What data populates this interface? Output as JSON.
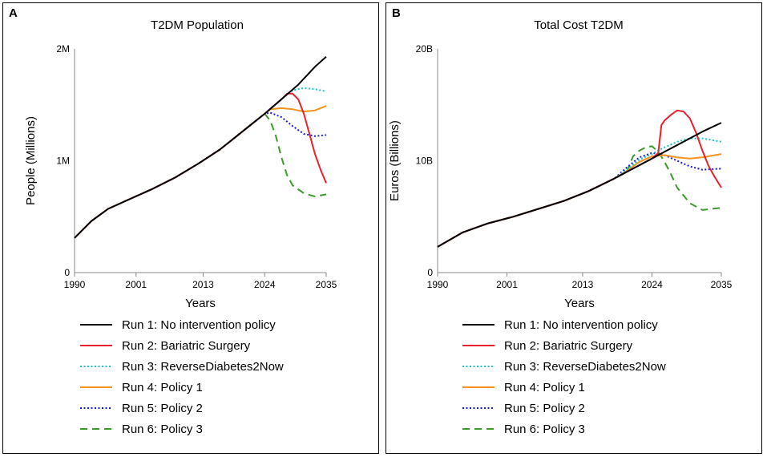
{
  "panels": [
    {
      "letter": "A",
      "chart_data": {
        "type": "line",
        "title": "T2DM Population",
        "xlabel": "Years",
        "ylabel": "People (Millions)",
        "xlim": [
          1990,
          2035
        ],
        "ylim": [
          0,
          2
        ],
        "xticks": [
          1990,
          2001,
          2013,
          2024,
          2035
        ],
        "xtick_labels": [
          "1990",
          "2001",
          "2013",
          "2024",
          "2035"
        ],
        "yticks": [
          0,
          1,
          2
        ],
        "ytick_labels": [
          "0",
          "1M",
          "2M"
        ],
        "grid": false,
        "legend_position": "bottom",
        "series": [
          {
            "name": "Run 1: No intervention policy",
            "color": "#000000",
            "dash": "solid",
            "x": [
              1990,
              1993,
              1996,
              2000,
              2004,
              2008,
              2012,
              2016,
              2020,
              2024,
              2027,
              2030,
              2033,
              2035
            ],
            "y": [
              0.31,
              0.46,
              0.57,
              0.66,
              0.75,
              0.85,
              0.97,
              1.1,
              1.26,
              1.42,
              1.55,
              1.68,
              1.84,
              1.93
            ]
          },
          {
            "name": "Run 2: Bariatric Surgery",
            "color": "#e8212b",
            "dash": "solid",
            "x": [
              1990,
              1993,
              1996,
              2000,
              2004,
              2008,
              2012,
              2016,
              2020,
              2024,
              2027,
              2028,
              2029,
              2030,
              2031,
              2032,
              2033,
              2034,
              2035
            ],
            "y": [
              0.31,
              0.46,
              0.57,
              0.66,
              0.75,
              0.85,
              0.97,
              1.1,
              1.26,
              1.42,
              1.55,
              1.6,
              1.6,
              1.55,
              1.42,
              1.24,
              1.06,
              0.92,
              0.8
            ]
          },
          {
            "name": "Run 3: ReverseDiabetes2Now",
            "color": "#19c5c9",
            "dash": "dot",
            "x": [
              1990,
              1993,
              1996,
              2000,
              2004,
              2008,
              2012,
              2016,
              2020,
              2024,
              2027,
              2029,
              2031,
              2033,
              2035
            ],
            "y": [
              0.31,
              0.46,
              0.57,
              0.66,
              0.75,
              0.85,
              0.97,
              1.1,
              1.26,
              1.42,
              1.55,
              1.63,
              1.65,
              1.64,
              1.62
            ]
          },
          {
            "name": "Run 4: Policy 1",
            "color": "#f7921e",
            "dash": "solid",
            "x": [
              1990,
              1993,
              1996,
              2000,
              2004,
              2008,
              2012,
              2016,
              2020,
              2024,
              2025,
              2027,
              2029,
              2031,
              2033,
              2035
            ],
            "y": [
              0.31,
              0.46,
              0.57,
              0.66,
              0.75,
              0.85,
              0.97,
              1.1,
              1.26,
              1.42,
              1.46,
              1.47,
              1.46,
              1.44,
              1.45,
              1.49
            ]
          },
          {
            "name": "Run 5: Policy 2",
            "color": "#1a1adb",
            "dash": "dot",
            "x": [
              1990,
              1993,
              1996,
              2000,
              2004,
              2008,
              2012,
              2016,
              2020,
              2024,
              2025,
              2027,
              2029,
              2031,
              2033,
              2035
            ],
            "y": [
              0.31,
              0.46,
              0.57,
              0.66,
              0.75,
              0.85,
              0.97,
              1.1,
              1.26,
              1.42,
              1.43,
              1.39,
              1.31,
              1.24,
              1.22,
              1.23
            ]
          },
          {
            "name": "Run 6: Policy 3",
            "color": "#3a9b2a",
            "dash": "dash",
            "x": [
              1990,
              1993,
              1996,
              2000,
              2004,
              2008,
              2012,
              2016,
              2020,
              2024,
              2025,
              2026,
              2027,
              2028,
              2029,
              2031,
              2033,
              2035
            ],
            "y": [
              0.31,
              0.46,
              0.57,
              0.66,
              0.75,
              0.85,
              0.97,
              1.1,
              1.26,
              1.42,
              1.36,
              1.22,
              1.03,
              0.87,
              0.78,
              0.71,
              0.68,
              0.7
            ]
          }
        ]
      }
    },
    {
      "letter": "B",
      "chart_data": {
        "type": "line",
        "title": "Total Cost T2DM",
        "xlabel": "Years",
        "ylabel": "Euros (Billions)",
        "xlim": [
          1990,
          2035
        ],
        "ylim": [
          0,
          20
        ],
        "xticks": [
          1990,
          2001,
          2013,
          2024,
          2035
        ],
        "xtick_labels": [
          "1990",
          "2001",
          "2013",
          "2024",
          "2035"
        ],
        "yticks": [
          0,
          10,
          20
        ],
        "ytick_labels": [
          "0",
          "10B",
          "20B"
        ],
        "grid": false,
        "legend_position": "bottom",
        "series": [
          {
            "name": "Run 1: No intervention policy",
            "color": "#000000",
            "dash": "solid",
            "x": [
              1990,
              1994,
              1998,
              2002,
              2006,
              2010,
              2014,
              2018,
              2020,
              2022,
              2024,
              2026,
              2028,
              2030,
              2032,
              2035
            ],
            "y": [
              2.3,
              3.6,
              4.4,
              5.0,
              5.7,
              6.4,
              7.3,
              8.4,
              9.0,
              9.6,
              10.2,
              10.8,
              11.4,
              12.0,
              12.6,
              13.4
            ]
          },
          {
            "name": "Run 2: Bariatric Surgery",
            "color": "#e8212b",
            "dash": "solid",
            "x": [
              1990,
              1994,
              1998,
              2002,
              2006,
              2010,
              2014,
              2018,
              2020,
              2022,
              2024,
              2025,
              2025.5,
              2026,
              2027,
              2028,
              2029,
              2030,
              2031,
              2032,
              2033,
              2034,
              2035
            ],
            "y": [
              2.3,
              3.6,
              4.4,
              5.0,
              5.7,
              6.4,
              7.3,
              8.4,
              9.0,
              9.6,
              10.2,
              10.7,
              13.2,
              13.6,
              14.1,
              14.5,
              14.4,
              13.8,
              12.5,
              10.9,
              9.5,
              8.5,
              7.6
            ]
          },
          {
            "name": "Run 3: ReverseDiabetes2Now",
            "color": "#19c5c9",
            "dash": "dot",
            "x": [
              1990,
              1994,
              1998,
              2002,
              2006,
              2010,
              2014,
              2018,
              2020,
              2022,
              2024,
              2026,
              2028,
              2030,
              2032,
              2035
            ],
            "y": [
              2.3,
              3.6,
              4.4,
              5.0,
              5.7,
              6.4,
              7.3,
              8.4,
              9.2,
              10.1,
              10.6,
              11.2,
              11.7,
              12.0,
              12.0,
              11.7
            ]
          },
          {
            "name": "Run 4: Policy 1",
            "color": "#f7921e",
            "dash": "solid",
            "x": [
              1990,
              1994,
              1998,
              2002,
              2006,
              2010,
              2014,
              2018,
              2020,
              2022,
              2024,
              2026,
              2028,
              2030,
              2032,
              2035
            ],
            "y": [
              2.3,
              3.6,
              4.4,
              5.0,
              5.7,
              6.4,
              7.3,
              8.4,
              9.1,
              9.9,
              10.4,
              10.5,
              10.3,
              10.2,
              10.3,
              10.6
            ]
          },
          {
            "name": "Run 5: Policy 2",
            "color": "#1a1adb",
            "dash": "dot",
            "x": [
              1990,
              1994,
              1998,
              2002,
              2006,
              2010,
              2014,
              2018,
              2020,
              2022,
              2024,
              2026,
              2028,
              2030,
              2032,
              2035
            ],
            "y": [
              2.3,
              3.6,
              4.4,
              5.0,
              5.7,
              6.4,
              7.3,
              8.4,
              9.4,
              10.3,
              10.7,
              10.5,
              10.0,
              9.5,
              9.2,
              9.3
            ]
          },
          {
            "name": "Run 6: Policy 3",
            "color": "#3a9b2a",
            "dash": "dash",
            "x": [
              1990,
              1994,
              1998,
              2002,
              2006,
              2010,
              2014,
              2018,
              2020,
              2021,
              2022,
              2023,
              2024,
              2025,
              2026,
              2027,
              2028,
              2030,
              2032,
              2035
            ],
            "y": [
              2.3,
              3.6,
              4.4,
              5.0,
              5.7,
              6.4,
              7.3,
              8.4,
              9.0,
              10.4,
              10.9,
              11.2,
              11.3,
              10.8,
              9.9,
              8.8,
              7.6,
              6.2,
              5.6,
              5.8
            ]
          }
        ]
      }
    }
  ]
}
